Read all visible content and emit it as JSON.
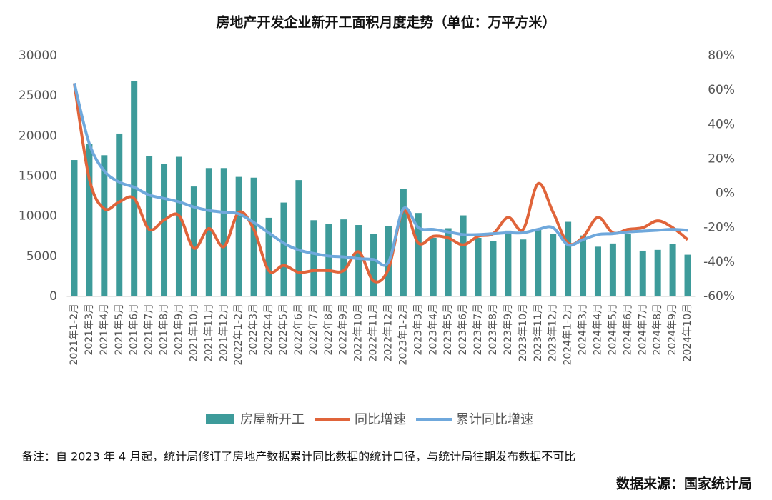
{
  "chart_data": {
    "type": "bar-line",
    "title": "房地产开发企业新开工面积月度走势（单位：万平方米）",
    "categories": [
      "2021年1-2月",
      "2021年3月",
      "2021年4月",
      "2021年5月",
      "2021年6月",
      "2021年7月",
      "2021年8月",
      "2021年9月",
      "2021年10月",
      "2021年11月",
      "2021年12月",
      "2022年1-2月",
      "2022年3月",
      "2022年4月",
      "2022年5月",
      "2022年6月",
      "2022年7月",
      "2022年8月",
      "2022年9月",
      "2022年10月",
      "2022年11月",
      "2022年12月",
      "2023年1-2月",
      "2023年3月",
      "2023年4月",
      "2023年5月",
      "2023年6月",
      "2023年7月",
      "2023年8月",
      "2023年9月",
      "2023年10月",
      "2023年11月",
      "2023年12月",
      "2024年1-2月",
      "2024年3月",
      "2024年4月",
      "2024年5月",
      "2024年6月",
      "2024年7月",
      "2024年8月",
      "2024年9月",
      "2024年10月"
    ],
    "series": [
      {
        "name": "房屋新开工",
        "kind": "bar",
        "color": "#3d9b9a",
        "values": [
          17000,
          19000,
          17600,
          20300,
          26800,
          17500,
          16500,
          17400,
          13700,
          16000,
          16000,
          14900,
          14800,
          9800,
          11700,
          14500,
          9500,
          9000,
          9600,
          8900,
          7800,
          8800,
          13400,
          10400,
          7300,
          8500,
          10100,
          7300,
          6900,
          8200,
          7100,
          8300,
          7800,
          9300,
          7600,
          6200,
          6600,
          7800,
          5700,
          5800,
          6500,
          5200
        ]
      },
      {
        "name": "同比增速",
        "kind": "line",
        "axis": "y2",
        "color": "#e0643a",
        "values": [
          64,
          8.5,
          -9,
          -5,
          -3,
          -21,
          -15.5,
          -13,
          -32,
          -20.5,
          -31,
          -11,
          -21,
          -45,
          -42,
          -46,
          -45,
          -45,
          -45,
          -34,
          -51,
          -44,
          -10,
          -29,
          -25,
          -26,
          -30,
          -25,
          -23.5,
          -14,
          -21,
          5.6,
          -11,
          -29,
          -25.5,
          -14,
          -23,
          -21,
          -20,
          -16,
          -20,
          -27
        ]
      },
      {
        "name": "累计同比增速",
        "kind": "line",
        "axis": "y2",
        "color": "#6fa8dc",
        "values": [
          64,
          29,
          13,
          6.5,
          3.5,
          -1,
          -3,
          -5,
          -8,
          -10,
          -11,
          -12,
          -17,
          -23,
          -29,
          -33,
          -35,
          -36.5,
          -37,
          -38,
          -38.5,
          -40,
          -9,
          -20,
          -21,
          -22.5,
          -24,
          -24,
          -23.5,
          -23,
          -23,
          -21,
          -20,
          -30,
          -27,
          -24,
          -23.5,
          -22.5,
          -22,
          -21.5,
          -21,
          -21.5
        ]
      }
    ],
    "ylim": [
      0,
      30000
    ],
    "yticks": [
      0,
      5000,
      10000,
      15000,
      20000,
      25000,
      30000
    ],
    "y2lim": [
      -60,
      80
    ],
    "y2ticks": [
      {
        "value": -60,
        "label": "-60%"
      },
      {
        "value": -40,
        "label": "-40%"
      },
      {
        "value": -20,
        "label": "-20%"
      },
      {
        "value": 0,
        "label": "0%"
      },
      {
        "value": 20,
        "label": "20%"
      },
      {
        "value": 40,
        "label": "40%"
      },
      {
        "value": 60,
        "label": "60%"
      },
      {
        "value": 80,
        "label": "80%"
      }
    ],
    "legend": "bottom",
    "note": "备注：自 2023 年 4 月起，统计局修订了房地产数据累计同比数据的统计口径，与统计局往期发布数据不可比",
    "source": "数据来源：国家统计局"
  }
}
